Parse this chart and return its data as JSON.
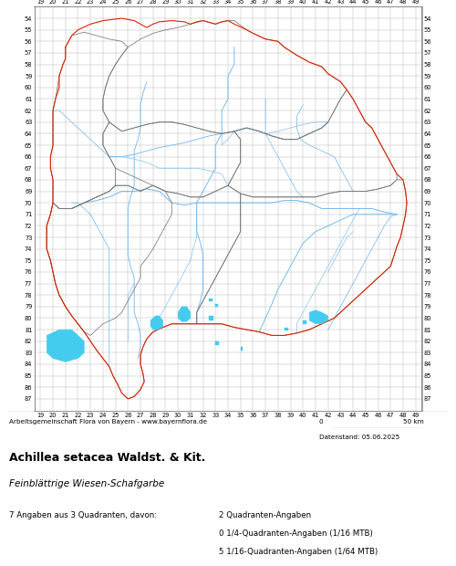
{
  "title_bold": "Achillea setacea Waldst. & Kit.",
  "title_italic": "Feinblättrige Wiesen-Schafgarbe",
  "stats_line": "7 Angaben aus 3 Quadranten, davon:",
  "stats_right": [
    "2 Quadranten-Angaben",
    "0 1/4-Quadranten-Angaben (1/16 MTB)",
    "5 1/16-Quadranten-Angaben (1/64 MTB)"
  ],
  "credit": "Arbeitsgemeinschaft Flora von Bayern - www.bayernflora.de",
  "scale_label": "0",
  "scale_km": "50 km",
  "date_label": "Datenstand: 05.06.2025",
  "x_ticks": [
    19,
    20,
    21,
    22,
    23,
    24,
    25,
    26,
    27,
    28,
    29,
    30,
    31,
    32,
    33,
    34,
    35,
    36,
    37,
    38,
    39,
    40,
    41,
    42,
    43,
    44,
    45,
    46,
    47,
    48,
    49
  ],
  "y_ticks": [
    54,
    55,
    56,
    57,
    58,
    59,
    60,
    61,
    62,
    63,
    64,
    65,
    66,
    67,
    68,
    69,
    70,
    71,
    72,
    73,
    74,
    75,
    76,
    77,
    78,
    79,
    80,
    81,
    82,
    83,
    84,
    85,
    86,
    87
  ],
  "grid_color": "#bbbbbb",
  "bg_color": "#ffffff",
  "border_color_red": "#dd2200",
  "border_color_gray": "#777777",
  "river_color": "#77bbee",
  "lake_color": "#44ccee",
  "fig_width": 5.0,
  "fig_height": 6.2,
  "dpi": 100
}
